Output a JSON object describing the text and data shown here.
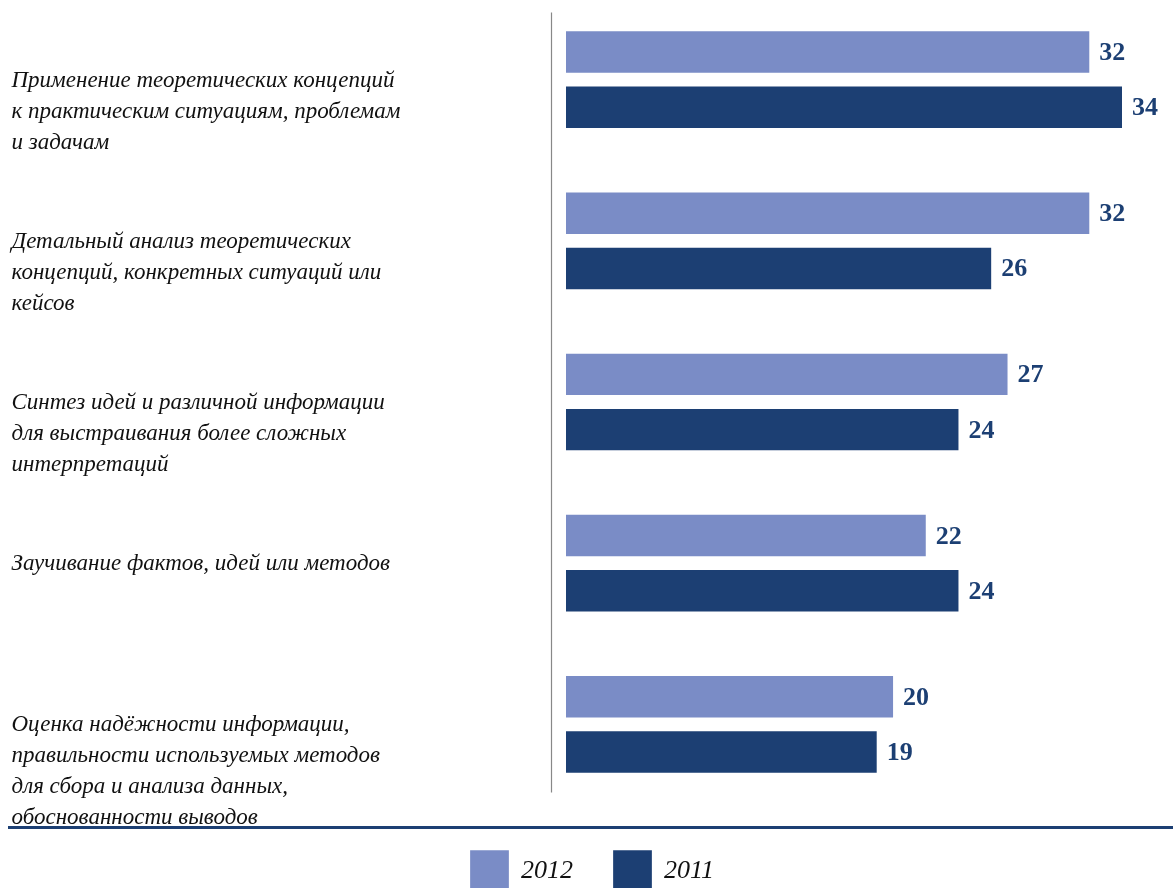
{
  "chart_data": {
    "type": "bar",
    "orientation": "horizontal",
    "data_labels": true,
    "legend": "bottom",
    "categories": [
      "Применение теоретических концепций к практическим ситуациям, проблемам и задачам",
      "Детальный анализ теоретических концепций, конкретных ситуаций или кейсов",
      "Синтез идей и различной информации для выстраивания более сложных интерпретаций",
      "Заучивание фактов, идей или методов",
      "Оценка надёжности информации, правильности используемых методов для сбора и анализа данных, обоснованности выводов"
    ],
    "series": [
      {
        "name": "2012",
        "color": "#7a8cc6",
        "values": [
          32,
          32,
          27,
          22,
          20
        ]
      },
      {
        "name": "2011",
        "color": "#1c3f73",
        "values": [
          34,
          26,
          24,
          24,
          19
        ]
      }
    ]
  }
}
